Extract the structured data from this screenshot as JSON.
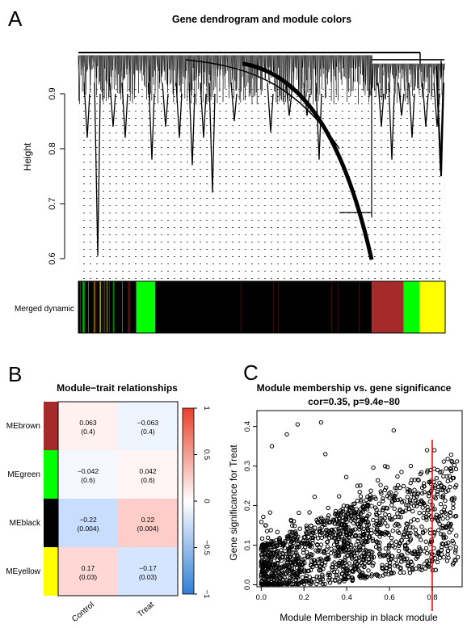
{
  "panels": {
    "a": {
      "letter": "A",
      "title": "Gene dendrogram and module colors",
      "ylabel": "Height",
      "yticks": [
        "0.6",
        "0.7",
        "0.8",
        "0.9"
      ],
      "colorbar_label": "Merged dynamic"
    },
    "b": {
      "letter": "B",
      "title": "Module−trait relationships",
      "legend_ticks": [
        "1",
        "0.5",
        "0",
        "−0.5",
        "−1"
      ]
    },
    "c": {
      "letter": "C",
      "title": "Module membership vs. gene significance",
      "subtitle": "cor=0.35, p=9.4e−80",
      "xlabel": "Module Membership in black module",
      "ylabel": "Gene significance for  Treat",
      "xticks": [
        "0.0",
        "0.2",
        "0.4",
        "0.6",
        "0.8"
      ],
      "yticks": [
        "0.0",
        "0.1",
        "0.2",
        "0.3",
        "0.4"
      ]
    }
  },
  "chart_data": [
    {
      "type": "dendrogram",
      "title": "Gene dendrogram and module colors",
      "ylabel": "Height",
      "ylim": [
        0.58,
        0.98
      ],
      "color_row": "Merged dynamic",
      "module_colors": [
        {
          "color": "black",
          "hex": "#000000",
          "start": 0.0,
          "end": 0.158
        },
        {
          "color": "green",
          "hex": "#00ff00",
          "start": 0.158,
          "end": 0.21
        },
        {
          "color": "black",
          "hex": "#000000",
          "start": 0.21,
          "end": 0.8
        },
        {
          "color": "brown",
          "hex": "#a52a2a",
          "start": 0.8,
          "end": 0.887
        },
        {
          "color": "green",
          "hex": "#00ff00",
          "start": 0.887,
          "end": 0.93
        },
        {
          "color": "yellow",
          "hex": "#ffff00",
          "start": 0.93,
          "end": 1.0
        }
      ]
    },
    {
      "type": "heatmap",
      "title": "Module−trait relationships",
      "rows": [
        "MEbrown",
        "MEgreen",
        "MEblack",
        "MEyellow"
      ],
      "row_colors": [
        "#a52a2a",
        "#00ff00",
        "#000000",
        "#ffff00"
      ],
      "columns": [
        "Control",
        "Treat"
      ],
      "values": [
        [
          0.063,
          -0.063
        ],
        [
          -0.042,
          0.042
        ],
        [
          -0.22,
          0.22
        ],
        [
          0.17,
          -0.17
        ]
      ],
      "pvalues": [
        [
          "(0.4)",
          "(0.4)"
        ],
        [
          "(0.6)",
          "(0.6)"
        ],
        [
          "(0.004)",
          "(0.004)"
        ],
        [
          "(0.03)",
          "(0.03)"
        ]
      ],
      "labels": [
        [
          "0.063",
          "−0.063"
        ],
        [
          "−0.042",
          "0.042"
        ],
        [
          "−0.22",
          "0.22"
        ],
        [
          "0.17",
          "−0.17"
        ]
      ],
      "color_range": [
        -1,
        1
      ],
      "legend_ticks": [
        1,
        0.5,
        0,
        -0.5,
        -1
      ]
    },
    {
      "type": "scatter",
      "title": "Module membership vs. gene significance",
      "subtitle": "cor=0.35, p=9.4e−80",
      "xlabel": "Module Membership in black module",
      "ylabel": "Gene significance for  Treat",
      "xlim": [
        -0.02,
        0.94
      ],
      "ylim": [
        -0.005,
        0.44
      ],
      "vline": {
        "x": 0.8,
        "color": "#ff0000"
      },
      "correlation": 0.35,
      "n_points": 1500,
      "sample_points": [
        [
          0.05,
          0.35
        ],
        [
          0.17,
          0.405
        ],
        [
          0.28,
          0.41
        ],
        [
          0.12,
          0.38
        ],
        [
          0.62,
          0.39
        ],
        [
          0.81,
          0.34
        ],
        [
          0.3,
          0.33
        ],
        [
          0.9,
          0.27
        ],
        [
          0.45,
          0.25
        ],
        [
          0.7,
          0.3
        ],
        [
          0.02,
          0.15
        ],
        [
          0.1,
          0.08
        ],
        [
          0.2,
          0.12
        ],
        [
          0.35,
          0.18
        ],
        [
          0.5,
          0.2
        ],
        [
          0.6,
          0.22
        ],
        [
          0.75,
          0.21
        ],
        [
          0.85,
          0.24
        ],
        [
          0.4,
          0.05
        ],
        [
          0.15,
          0.02
        ]
      ]
    }
  ]
}
